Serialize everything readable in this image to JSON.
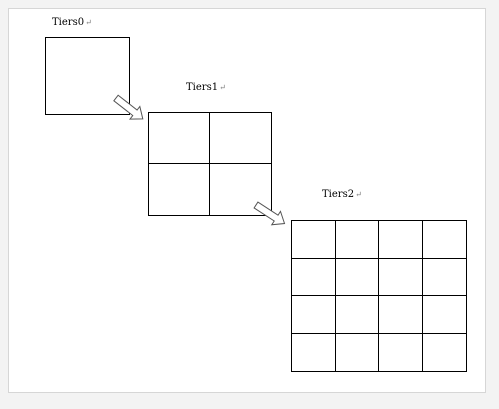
{
  "tiers": [
    {
      "label": "Tiers0",
      "mark": "↵",
      "rows": 1,
      "cols": 1
    },
    {
      "label": "Tiers1",
      "mark": "↵",
      "rows": 2,
      "cols": 2
    },
    {
      "label": "Tiers2",
      "mark": "↵",
      "rows": 4,
      "cols": 4
    }
  ],
  "colors": {
    "line": "#000000",
    "arrow_fill": "#ffffff",
    "arrow_stroke": "#555555",
    "background": "#ffffff"
  }
}
